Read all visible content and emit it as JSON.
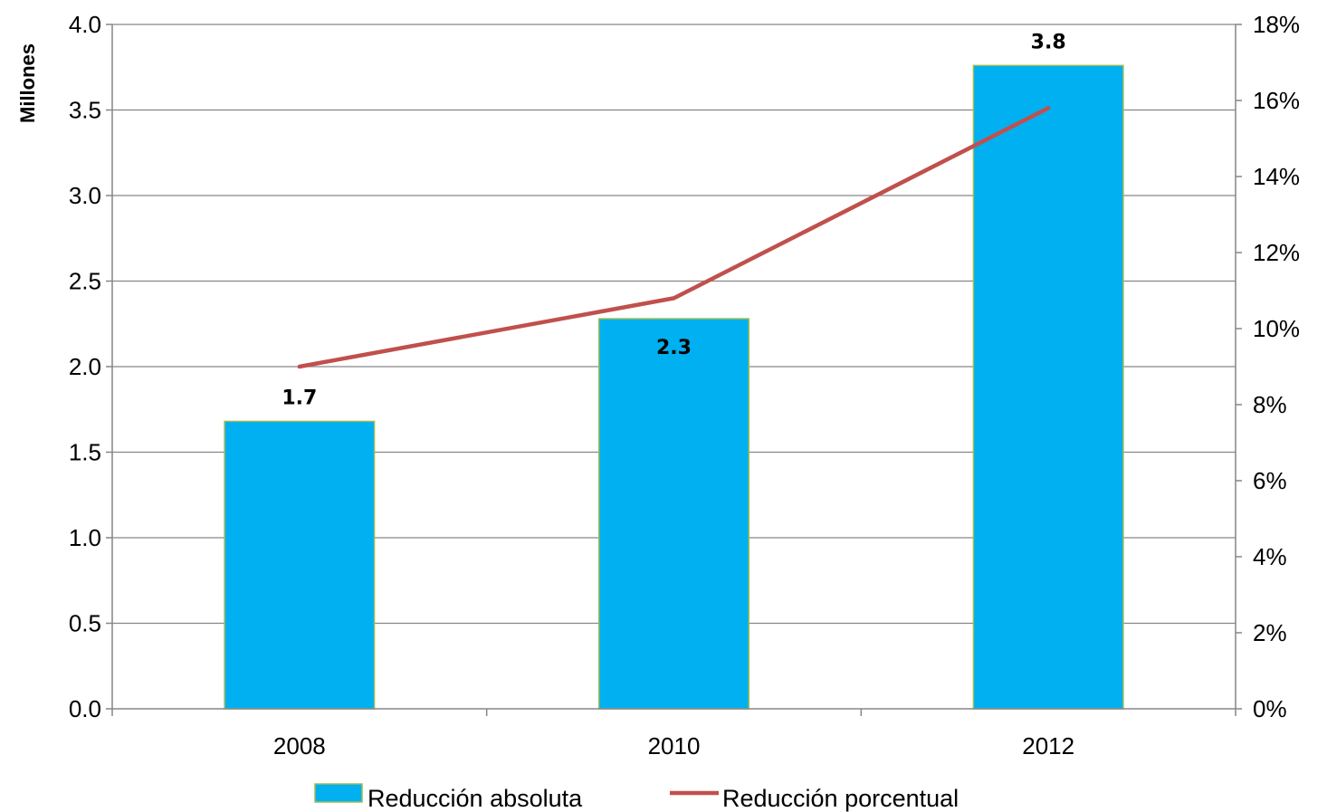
{
  "chart_data": {
    "type": "bar",
    "categories": [
      "2008",
      "2010",
      "2012"
    ],
    "series": [
      {
        "name": "Reducción absoluta",
        "kind": "bar",
        "axis": "left",
        "values": [
          1.68,
          2.28,
          3.76
        ],
        "labels": [
          "1.7",
          "2.3",
          "3.8"
        ],
        "color": "#00B0F0",
        "border_color": "#9BBB59"
      },
      {
        "name": "Reducción porcentual",
        "kind": "line",
        "axis": "right",
        "values": [
          9.0,
          10.8,
          15.8
        ],
        "color": "#C0504D"
      }
    ],
    "ylabel": "Millones",
    "ylim": [
      0,
      4.0
    ],
    "y_ticks": [
      "0.0",
      "0.5",
      "1.0",
      "1.5",
      "2.0",
      "2.5",
      "3.0",
      "3.5",
      "4.0"
    ],
    "y2lim": [
      0,
      18
    ],
    "y2_ticks": [
      "0%",
      "2%",
      "4%",
      "6%",
      "8%",
      "10%",
      "12%",
      "14%",
      "16%",
      "18%"
    ],
    "grid": true,
    "legend_position": "bottom"
  }
}
